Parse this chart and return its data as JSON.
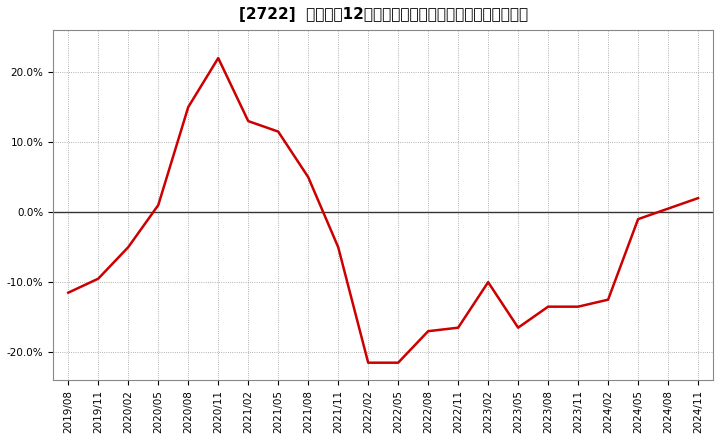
{
  "title": "[2722]  売上高の12か月移動合計の対前年同期増減率の推移",
  "x_labels": [
    "2019/08",
    "2019/11",
    "2020/02",
    "2020/05",
    "2020/08",
    "2020/11",
    "2021/02",
    "2021/05",
    "2021/08",
    "2021/11",
    "2022/02",
    "2022/05",
    "2022/08",
    "2022/11",
    "2023/02",
    "2023/05",
    "2023/08",
    "2023/11",
    "2024/02",
    "2024/05",
    "2024/08",
    "2024/11"
  ],
  "x_values": [
    0,
    3,
    6,
    9,
    12,
    15,
    18,
    21,
    24,
    27,
    30,
    33,
    36,
    39,
    42,
    45,
    48,
    51,
    54,
    57,
    60,
    63
  ],
  "y_values": [
    -11.5,
    -9.5,
    -5.0,
    1.0,
    15.0,
    22.0,
    13.0,
    11.5,
    5.0,
    -5.0,
    -21.5,
    -21.5,
    -17.0,
    -16.5,
    -10.0,
    -16.5,
    -13.5,
    -13.5,
    -12.5,
    -1.0,
    0.5,
    2.0
  ],
  "line_color": "#cc0000",
  "bg_color": "#ffffff",
  "plot_bg_color": "#ffffff",
  "grid_color": "#999999",
  "zero_line_color": "#333333",
  "border_color": "#888888",
  "ylim": [
    -24,
    26
  ],
  "yticks": [
    -20.0,
    -10.0,
    0.0,
    10.0,
    20.0
  ],
  "title_fontsize": 11,
  "tick_fontsize": 7.5
}
